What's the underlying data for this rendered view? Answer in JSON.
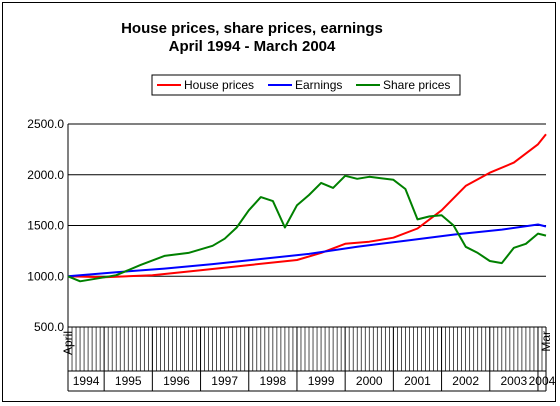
{
  "chart_data": {
    "type": "line",
    "title": "House prices, share prices, earnings",
    "subtitle": "April 1994 - March 2004",
    "xlabel": "",
    "ylabel": "",
    "ylim": [
      500,
      2500
    ],
    "yticks": [
      "2500.0",
      "2000.0",
      "1500.0",
      "1000.0",
      "500.0"
    ],
    "yticks_values": [
      2500,
      2000,
      1500,
      1000,
      500
    ],
    "x_start_label": "April",
    "x_end_label": "Mar",
    "year_labels": [
      "1994",
      "1995",
      "1996",
      "1997",
      "1998",
      "1999",
      "2000",
      "2001",
      "2002",
      "2003",
      "2004"
    ],
    "grid": "horizontal",
    "legend_position": "top-right",
    "legend_has_border": true,
    "series": [
      {
        "name": "House prices",
        "color": "#ff0000",
        "x": [
          "1994-04",
          "1995-01",
          "1996-01",
          "1997-01",
          "1998-01",
          "1999-01",
          "1999-07",
          "2000-01",
          "2000-07",
          "2001-01",
          "2001-07",
          "2002-01",
          "2002-07",
          "2003-01",
          "2003-07",
          "2004-01",
          "2004-03"
        ],
        "values": [
          1000,
          990,
          1010,
          1060,
          1110,
          1160,
          1230,
          1320,
          1340,
          1380,
          1470,
          1650,
          1890,
          2020,
          2120,
          2300,
          2400
        ]
      },
      {
        "name": "Earnings",
        "color": "#0000ff",
        "x": [
          "1994-04",
          "1995-04",
          "1996-04",
          "1997-04",
          "1998-04",
          "1999-04",
          "2000-04",
          "2001-04",
          "2002-04",
          "2003-04",
          "2004-01",
          "2004-03"
        ],
        "values": [
          1000,
          1040,
          1075,
          1120,
          1170,
          1220,
          1290,
          1350,
          1410,
          1460,
          1510,
          1490
        ]
      },
      {
        "name": "Share prices",
        "color": "#008000",
        "x": [
          "1994-04",
          "1994-07",
          "1995-01",
          "1995-04",
          "1995-10",
          "1996-04",
          "1996-10",
          "1997-04",
          "1997-07",
          "1997-10",
          "1998-01",
          "1998-04",
          "1998-07",
          "1998-10",
          "1999-01",
          "1999-04",
          "1999-07",
          "1999-10",
          "2000-01",
          "2000-04",
          "2000-07",
          "2001-01",
          "2001-04",
          "2001-07",
          "2001-10",
          "2002-01",
          "2002-04",
          "2002-07",
          "2002-10",
          "2003-01",
          "2003-04",
          "2003-07",
          "2003-10",
          "2004-01",
          "2004-03"
        ],
        "values": [
          1000,
          950,
          990,
          1010,
          1110,
          1200,
          1230,
          1300,
          1370,
          1480,
          1650,
          1780,
          1740,
          1480,
          1700,
          1800,
          1920,
          1870,
          1990,
          1960,
          1980,
          1950,
          1860,
          1560,
          1590,
          1600,
          1500,
          1290,
          1230,
          1150,
          1130,
          1280,
          1320,
          1420,
          1400
        ]
      }
    ]
  }
}
